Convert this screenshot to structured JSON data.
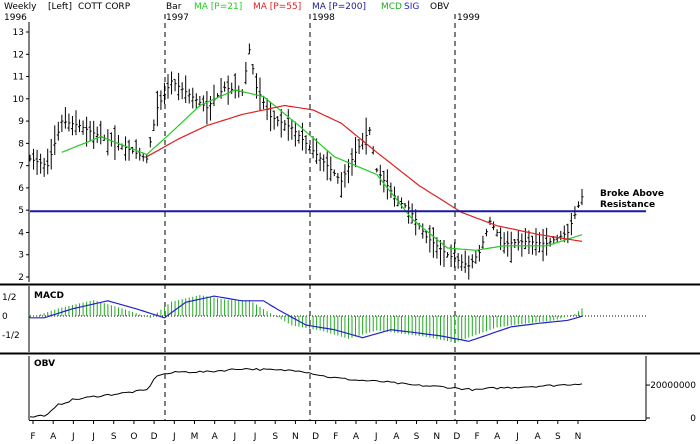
{
  "header": {
    "interval": "Weekly",
    "scale": "[Left]",
    "ticker": "COTT CORP",
    "bar_label": "Bar",
    "ma21_label": "MA [P=21]",
    "ma55_label": "MA [P=55]",
    "ma200_label": "MA [P=200]",
    "macd_label": "MCD",
    "sig_label": "SIG",
    "obv_label": "OBV",
    "years": [
      "1996",
      "1997",
      "1998",
      "1999"
    ]
  },
  "colors": {
    "price_bars": "#000000",
    "ma21": "#22cc22",
    "ma55": "#dd2222",
    "ma200": "#1a1a8c",
    "macd_hist": "#22aa22",
    "macd_line": "#2222cc",
    "resistance": "#1a1aa0",
    "divider": "#000000"
  },
  "annotation": {
    "line1": "Broke Above",
    "line2": "Resistance"
  },
  "chart_data": [
    {
      "type": "bar",
      "title": "COTT CORP",
      "subtype": "ohlc",
      "y_ticks": [
        2,
        3,
        4,
        5,
        6,
        7,
        8,
        9,
        10,
        11,
        12,
        13
      ],
      "ylim": [
        1.8,
        13.4
      ],
      "resistance_level": 4.95,
      "x_tick_labels": [
        "F",
        "A",
        "J",
        "J",
        "S",
        "O",
        "D",
        "J",
        "M",
        "A",
        "J",
        "J",
        "S",
        "N",
        "D",
        "F",
        "A",
        "J",
        "A",
        "S",
        "N",
        "D",
        "F",
        "A",
        "J",
        "A",
        "S",
        "N"
      ],
      "close_anchors": [
        [
          0,
          7.3
        ],
        [
          5,
          7.0
        ],
        [
          9,
          9.0
        ],
        [
          14,
          8.8
        ],
        [
          20,
          8.3
        ],
        [
          26,
          7.9
        ],
        [
          33,
          7.3
        ],
        [
          36,
          9.6
        ],
        [
          40,
          10.8
        ],
        [
          45,
          10.2
        ],
        [
          50,
          9.6
        ],
        [
          55,
          10.5
        ],
        [
          60,
          10.3
        ],
        [
          62,
          12.2
        ],
        [
          64,
          10.5
        ],
        [
          68,
          9.2
        ],
        [
          74,
          8.7
        ],
        [
          78,
          8.0
        ],
        [
          84,
          7.0
        ],
        [
          88,
          6.3
        ],
        [
          92,
          7.6
        ],
        [
          96,
          8.6
        ],
        [
          98,
          6.8
        ],
        [
          104,
          5.4
        ],
        [
          107,
          5.1
        ],
        [
          112,
          3.8
        ],
        [
          118,
          3.0
        ],
        [
          124,
          2.5
        ],
        [
          127,
          3.1
        ],
        [
          130,
          4.5
        ],
        [
          134,
          3.5
        ],
        [
          140,
          3.6
        ],
        [
          146,
          3.5
        ],
        [
          152,
          4.0
        ],
        [
          154,
          4.8
        ],
        [
          156,
          5.6
        ]
      ],
      "series": [
        {
          "name": "MA [P=21]",
          "values": [
            [
              9,
              7.6
            ],
            [
              20,
              8.3
            ],
            [
              33,
              7.5
            ],
            [
              40,
              8.5
            ],
            [
              48,
              9.7
            ],
            [
              58,
              10.4
            ],
            [
              66,
              10.1
            ],
            [
              76,
              8.8
            ],
            [
              86,
              7.4
            ],
            [
              98,
              6.6
            ],
            [
              108,
              4.6
            ],
            [
              118,
              3.3
            ],
            [
              126,
              3.2
            ],
            [
              134,
              3.4
            ],
            [
              146,
              3.4
            ],
            [
              156,
              3.9
            ]
          ]
        },
        {
          "name": "MA [P=55]",
          "values": [
            [
              33,
              7.4
            ],
            [
              42,
              8.2
            ],
            [
              50,
              8.8
            ],
            [
              60,
              9.3
            ],
            [
              72,
              9.7
            ],
            [
              80,
              9.5
            ],
            [
              88,
              8.9
            ],
            [
              98,
              7.6
            ],
            [
              110,
              6.1
            ],
            [
              122,
              4.9
            ],
            [
              132,
              4.3
            ],
            [
              144,
              3.9
            ],
            [
              156,
              3.6
            ]
          ]
        }
      ]
    },
    {
      "type": "bar",
      "title": "MACD",
      "y_ticks": [
        "1/2",
        "0",
        "-1/2"
      ],
      "ylim": [
        -0.75,
        0.75
      ],
      "anchors": [
        [
          0,
          -0.05
        ],
        [
          8,
          0.2
        ],
        [
          18,
          0.42
        ],
        [
          26,
          0.2
        ],
        [
          34,
          -0.05
        ],
        [
          40,
          0.38
        ],
        [
          48,
          0.55
        ],
        [
          56,
          0.42
        ],
        [
          62,
          0.42
        ],
        [
          66,
          0.18
        ],
        [
          74,
          -0.25
        ],
        [
          82,
          -0.38
        ],
        [
          90,
          -0.6
        ],
        [
          98,
          -0.38
        ],
        [
          104,
          -0.45
        ],
        [
          112,
          -0.55
        ],
        [
          120,
          -0.7
        ],
        [
          126,
          -0.5
        ],
        [
          132,
          -0.3
        ],
        [
          140,
          -0.2
        ],
        [
          148,
          -0.12
        ],
        [
          154,
          0.05
        ],
        [
          156,
          0.2
        ]
      ]
    },
    {
      "type": "line",
      "title": "OBV",
      "y_ticks": [
        "20000000",
        "0"
      ],
      "ylim": [
        0,
        34000000
      ],
      "values": [
        [
          0,
          500000
        ],
        [
          5,
          2000000
        ],
        [
          8,
          8000000
        ],
        [
          12,
          11000000
        ],
        [
          18,
          13000000
        ],
        [
          26,
          15000000
        ],
        [
          33,
          17000000
        ],
        [
          36,
          26000000
        ],
        [
          42,
          28000000
        ],
        [
          50,
          28000000
        ],
        [
          60,
          30000000
        ],
        [
          70,
          29000000
        ],
        [
          76,
          29000000
        ],
        [
          84,
          25000000
        ],
        [
          92,
          23000000
        ],
        [
          100,
          22000000
        ],
        [
          108,
          20000000
        ],
        [
          116,
          19000000
        ],
        [
          126,
          17000000
        ],
        [
          130,
          18000000
        ],
        [
          140,
          19000000
        ],
        [
          150,
          20000000
        ],
        [
          156,
          21000000
        ]
      ]
    }
  ]
}
